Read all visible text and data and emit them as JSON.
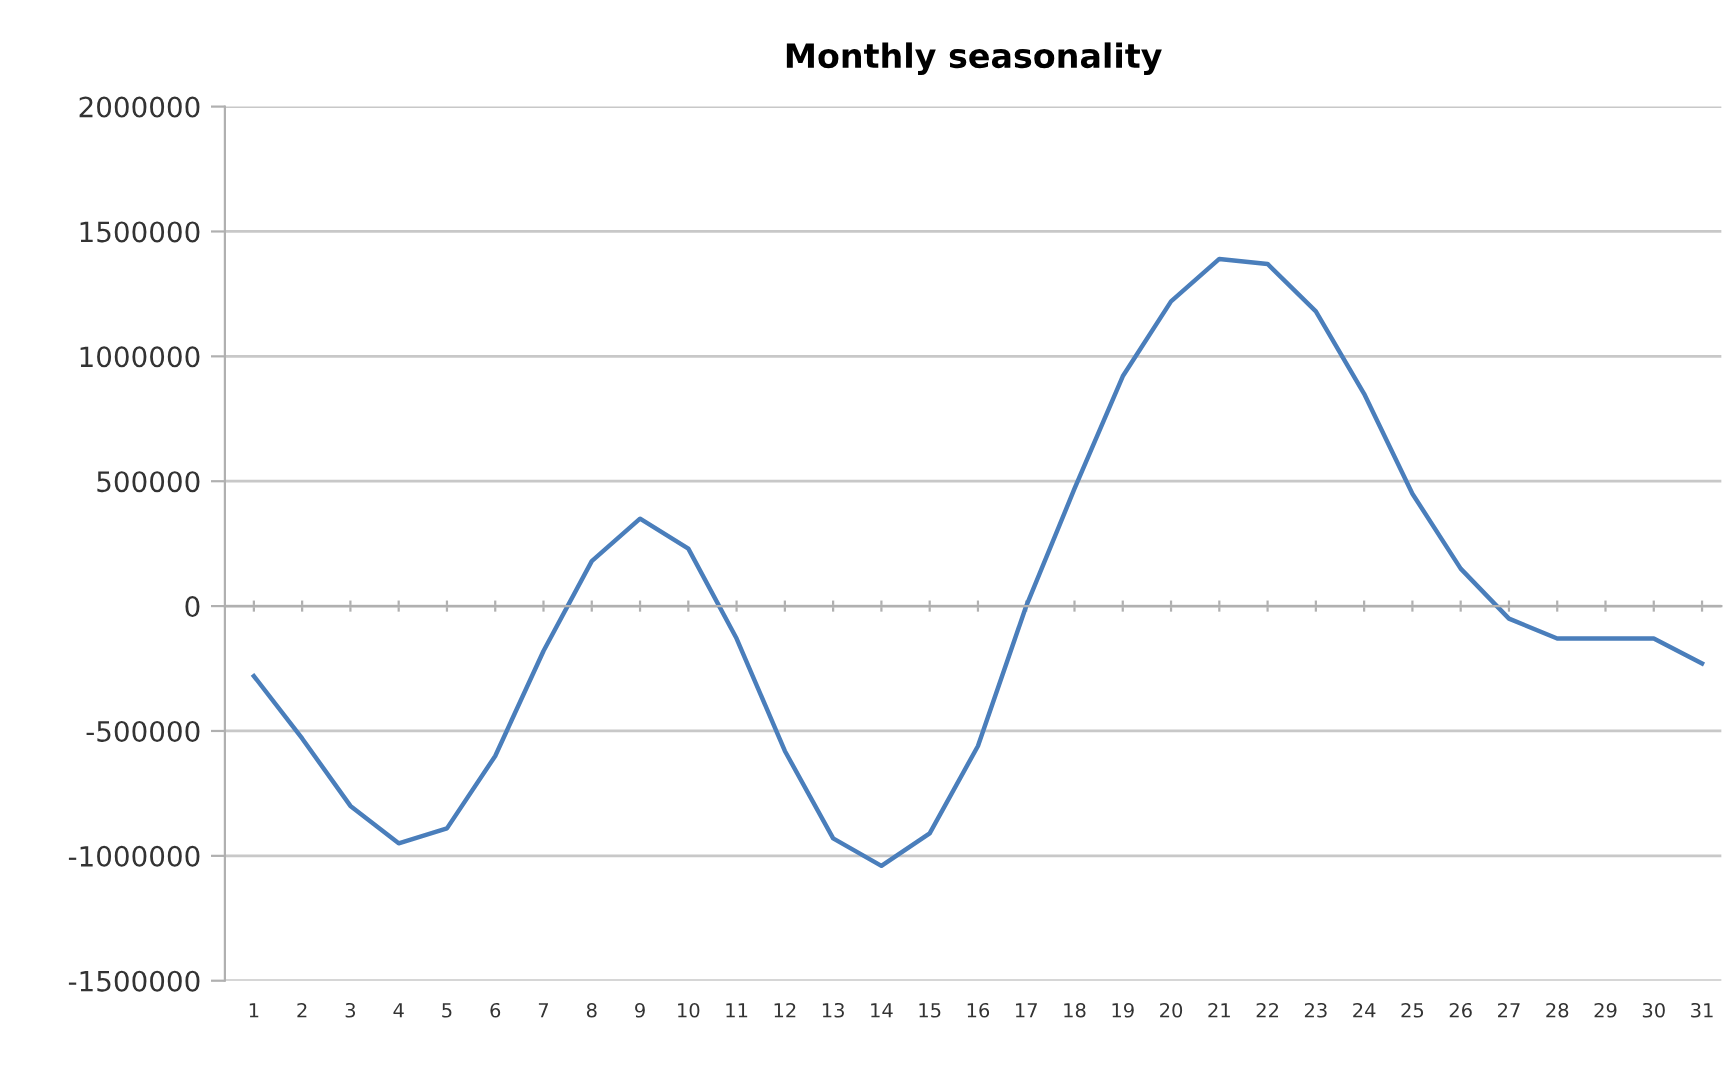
{
  "chart_data": {
    "type": "line",
    "title": "Monthly seasonality",
    "categories": [
      "1",
      "2",
      "3",
      "4",
      "5",
      "6",
      "7",
      "8",
      "9",
      "10",
      "11",
      "12",
      "13",
      "14",
      "15",
      "16",
      "17",
      "18",
      "19",
      "20",
      "21",
      "22",
      "23",
      "24",
      "25",
      "26",
      "27",
      "28",
      "29",
      "30",
      "31"
    ],
    "series": [
      {
        "color": "#4a7ebb",
        "values": [
          -280000,
          -530000,
          -800000,
          -950000,
          -890000,
          -600000,
          -180000,
          180000,
          350000,
          230000,
          -130000,
          -580000,
          -930000,
          -1040000,
          -910000,
          -560000,
          0,
          470000,
          920000,
          1220000,
          1390000,
          1370000,
          1180000,
          850000,
          450000,
          150000,
          -50000,
          -130000,
          -130000,
          -130000,
          -230000
        ]
      }
    ],
    "ylim": [
      -1500000,
      2000000
    ],
    "yticks": [
      -1500000,
      -1000000,
      -500000,
      0,
      500000,
      1000000,
      1500000,
      2000000
    ],
    "grid": "y",
    "legend": false,
    "marker": "none",
    "line_style": "solid"
  }
}
